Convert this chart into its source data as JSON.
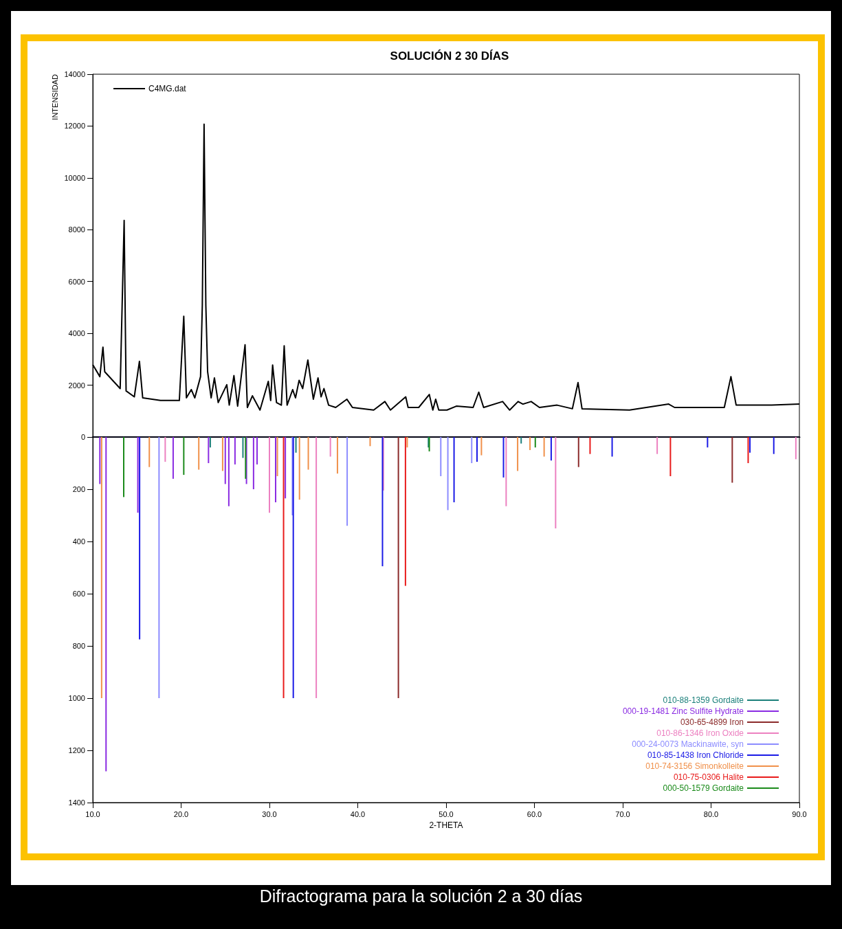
{
  "chart_data": [
    {
      "type": "line",
      "title": "SOLUCIÓN 2 30 DÍAS",
      "ylabel": "INTENSIDAD",
      "xlim": [
        10,
        90
      ],
      "ylim": [
        0,
        14000
      ],
      "yticks": [
        2000,
        4000,
        6000,
        8000,
        10000,
        12000,
        14000
      ],
      "tick_labels": "y",
      "legend": "top left",
      "x": [
        10.0,
        10.8,
        11.15,
        11.35,
        13.1,
        13.55,
        13.77,
        14.7,
        15.28,
        15.65,
        17.66,
        19.8,
        20.3,
        20.6,
        21.15,
        21.55,
        22.2,
        22.4,
        22.6,
        22.8,
        23.0,
        23.4,
        23.77,
        24.2,
        25.17,
        25.45,
        25.98,
        26.4,
        27.24,
        27.5,
        28.07,
        28.93,
        29.87,
        30.14,
        30.36,
        30.8,
        31.35,
        31.67,
        32.0,
        32.63,
        32.95,
        33.36,
        33.76,
        34.35,
        34.97,
        35.5,
        35.85,
        36.17,
        36.7,
        37.5,
        38.77,
        39.4,
        41.8,
        43.07,
        43.7,
        45.43,
        45.7,
        46.9,
        48.1,
        48.5,
        48.82,
        49.17,
        50.1,
        51.16,
        53.06,
        53.7,
        54.25,
        56.4,
        57.2,
        58.15,
        58.7,
        59.63,
        60.57,
        62.57,
        64.3,
        64.94,
        65.39,
        70.77,
        75.2,
        75.87,
        81.5,
        82.25,
        82.84,
        86.87,
        90.0
      ],
      "series": [
        {
          "name": "C4MG.dat",
          "color": "#000000",
          "values": [
            2790,
            2330,
            3470,
            2520,
            1870,
            8360,
            1780,
            1550,
            2920,
            1510,
            1410,
            1410,
            4660,
            1510,
            1830,
            1510,
            2330,
            5070,
            12070,
            5070,
            2520,
            1510,
            2280,
            1330,
            2020,
            1230,
            2370,
            1190,
            3560,
            1140,
            1590,
            1040,
            2150,
            1410,
            2780,
            1330,
            1230,
            3520,
            1230,
            1830,
            1510,
            2190,
            1870,
            2970,
            1460,
            2280,
            1550,
            1870,
            1230,
            1140,
            1460,
            1140,
            1040,
            1370,
            1040,
            1550,
            1140,
            1140,
            1640,
            1040,
            1460,
            1040,
            1040,
            1190,
            1140,
            1730,
            1140,
            1370,
            1040,
            1370,
            1270,
            1370,
            1140,
            1230,
            1090,
            2100,
            1090,
            1040,
            1270,
            1140,
            1140,
            2330,
            1230,
            1230,
            1270
          ]
        }
      ]
    },
    {
      "type": "bar",
      "xlabel": "2-THETA",
      "xlim": [
        10,
        90
      ],
      "ylim": [
        1400,
        0
      ],
      "xticks": [
        {
          "value": 10,
          "label": "10.0"
        },
        {
          "value": 20,
          "label": "20.0"
        },
        {
          "value": 30,
          "label": "30.0"
        },
        {
          "value": 40,
          "label": "40.0"
        },
        {
          "value": 50,
          "label": "50.0"
        },
        {
          "value": 60,
          "label": "60.0"
        },
        {
          "value": 70,
          "label": "70.0"
        },
        {
          "value": 80,
          "label": "80.0"
        },
        {
          "value": 90,
          "label": "90.0"
        }
      ],
      "yticks": [
        0,
        200,
        400,
        600,
        800,
        1000,
        1200,
        1400
      ],
      "legend": "bottom right",
      "annotations": [
        "Difractograma para la solución 2 a 30 días"
      ],
      "series": [
        {
          "name": "010-88-1359 Gordaite",
          "color": "#1a7f7a",
          "x": [
            23.3,
            27.0,
            33.0,
            48.0,
            58.5
          ],
          "values": [
            40,
            80,
            60,
            40,
            25
          ]
        },
        {
          "name": "000-19-1481 Zinc Sulfite Hydrate",
          "color": "#8a2be2",
          "x": [
            10.8,
            11.5,
            15.1,
            19.1,
            23.1,
            25.0,
            25.4,
            26.1,
            27.4,
            28.2,
            28.6,
            30.7,
            31.8
          ],
          "values": [
            180,
            1280,
            290,
            160,
            100,
            180,
            265,
            105,
            180,
            200,
            105,
            250,
            235
          ]
        },
        {
          "name": "030-65-4899 Iron",
          "color": "#8b2a2a",
          "x": [
            44.6,
            65.0,
            82.4
          ],
          "values": [
            1000,
            115,
            175
          ]
        },
        {
          "name": "010-86-1346 Iron Oxide",
          "color": "#ec80c0",
          "x": [
            18.2,
            30.0,
            35.3,
            36.9,
            42.9,
            56.8,
            62.4,
            73.9,
            89.6
          ],
          "values": [
            95,
            290,
            1000,
            75,
            205,
            265,
            350,
            65,
            85
          ]
        },
        {
          "name": "000-24-0073 Mackinawite, syn",
          "color": "#8c8cff",
          "x": [
            17.5,
            32.6,
            38.8,
            49.4,
            50.2,
            52.9
          ],
          "values": [
            1000,
            300,
            340,
            150,
            280,
            100
          ]
        },
        {
          "name": "010-85-1438 Iron Chloride",
          "color": "#1a1ae6",
          "x": [
            15.3,
            32.7,
            42.8,
            50.9,
            53.5,
            56.5,
            61.9,
            68.8,
            79.6,
            84.4,
            87.1
          ],
          "values": [
            775,
            1000,
            495,
            250,
            95,
            155,
            90,
            75,
            40,
            60,
            65
          ]
        },
        {
          "name": "010-74-3156 Simonkolleite",
          "color": "#f0904a",
          "x": [
            11.0,
            16.4,
            22.0,
            24.7,
            30.9,
            33.4,
            34.4,
            37.7,
            41.4,
            45.6,
            54.0,
            58.1,
            59.5,
            61.1
          ],
          "values": [
            1000,
            115,
            125,
            130,
            150,
            240,
            125,
            140,
            35,
            40,
            70,
            130,
            50,
            75
          ]
        },
        {
          "name": "010-75-0306 Halite",
          "color": "#e81a1a",
          "x": [
            31.6,
            45.4,
            66.3,
            75.4,
            84.2
          ],
          "values": [
            1000,
            570,
            65,
            150,
            100
          ]
        },
        {
          "name": "000-50-1579 Gordaite",
          "color": "#1a8a1a",
          "x": [
            13.5,
            20.3,
            27.3,
            48.1,
            60.1
          ],
          "values": [
            230,
            145,
            160,
            55,
            40
          ]
        }
      ]
    }
  ]
}
